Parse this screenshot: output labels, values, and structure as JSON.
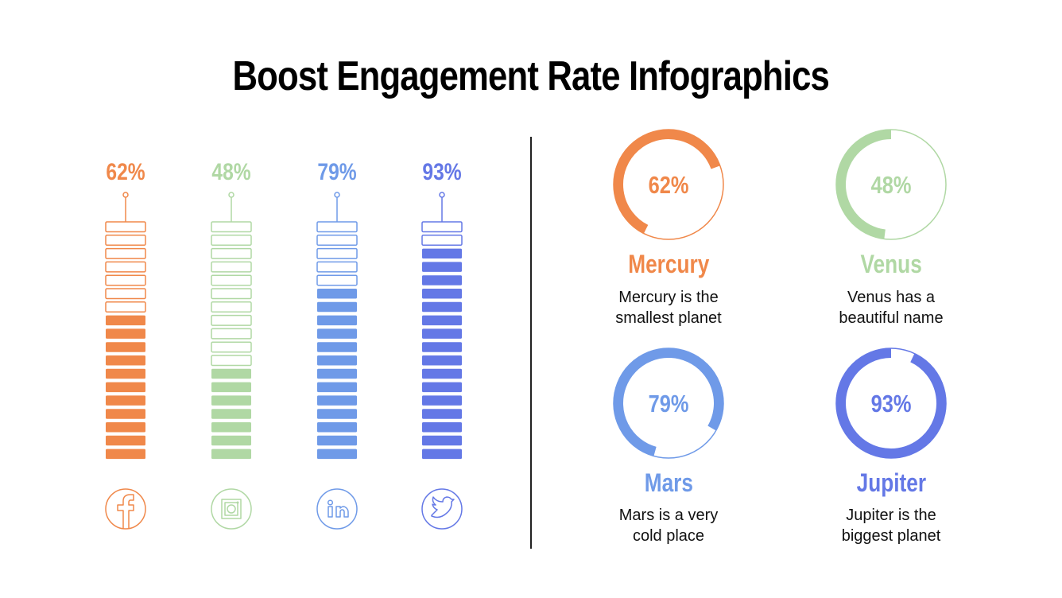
{
  "title": "Boost Engagement Rate Infographics",
  "colors": {
    "orange": "#F0884A",
    "green": "#B0D8A4",
    "blue": "#6F9AE8",
    "purple": "#6478E6"
  },
  "bars": [
    {
      "label": "62%",
      "value": 62,
      "filled_segments": 11,
      "total_segments": 18,
      "color": "#F0884A",
      "icon": "facebook-icon"
    },
    {
      "label": "48%",
      "value": 48,
      "filled_segments": 7,
      "total_segments": 18,
      "color": "#B0D8A4",
      "icon": "instagram-icon"
    },
    {
      "label": "79%",
      "value": 79,
      "filled_segments": 13,
      "total_segments": 18,
      "color": "#6F9AE8",
      "icon": "linkedin-icon"
    },
    {
      "label": "93%",
      "value": 93,
      "filled_segments": 16,
      "total_segments": 18,
      "color": "#6478E6",
      "icon": "twitter-icon"
    }
  ],
  "planets": [
    {
      "label": "62%",
      "value": 62,
      "name": "Mercury",
      "desc1": "Mercury is the",
      "desc2": "smallest planet",
      "color": "#F0884A"
    },
    {
      "label": "48%",
      "value": 48,
      "name": "Venus",
      "desc1": "Venus has a",
      "desc2": "beautiful name",
      "color": "#B0D8A4"
    },
    {
      "label": "79%",
      "value": 79,
      "name": "Mars",
      "desc1": "Mars is a very",
      "desc2": "cold place",
      "color": "#6F9AE8"
    },
    {
      "label": "93%",
      "value": 93,
      "name": "Jupiter",
      "desc1": "Jupiter is the",
      "desc2": "biggest planet",
      "color": "#6478E6"
    }
  ]
}
